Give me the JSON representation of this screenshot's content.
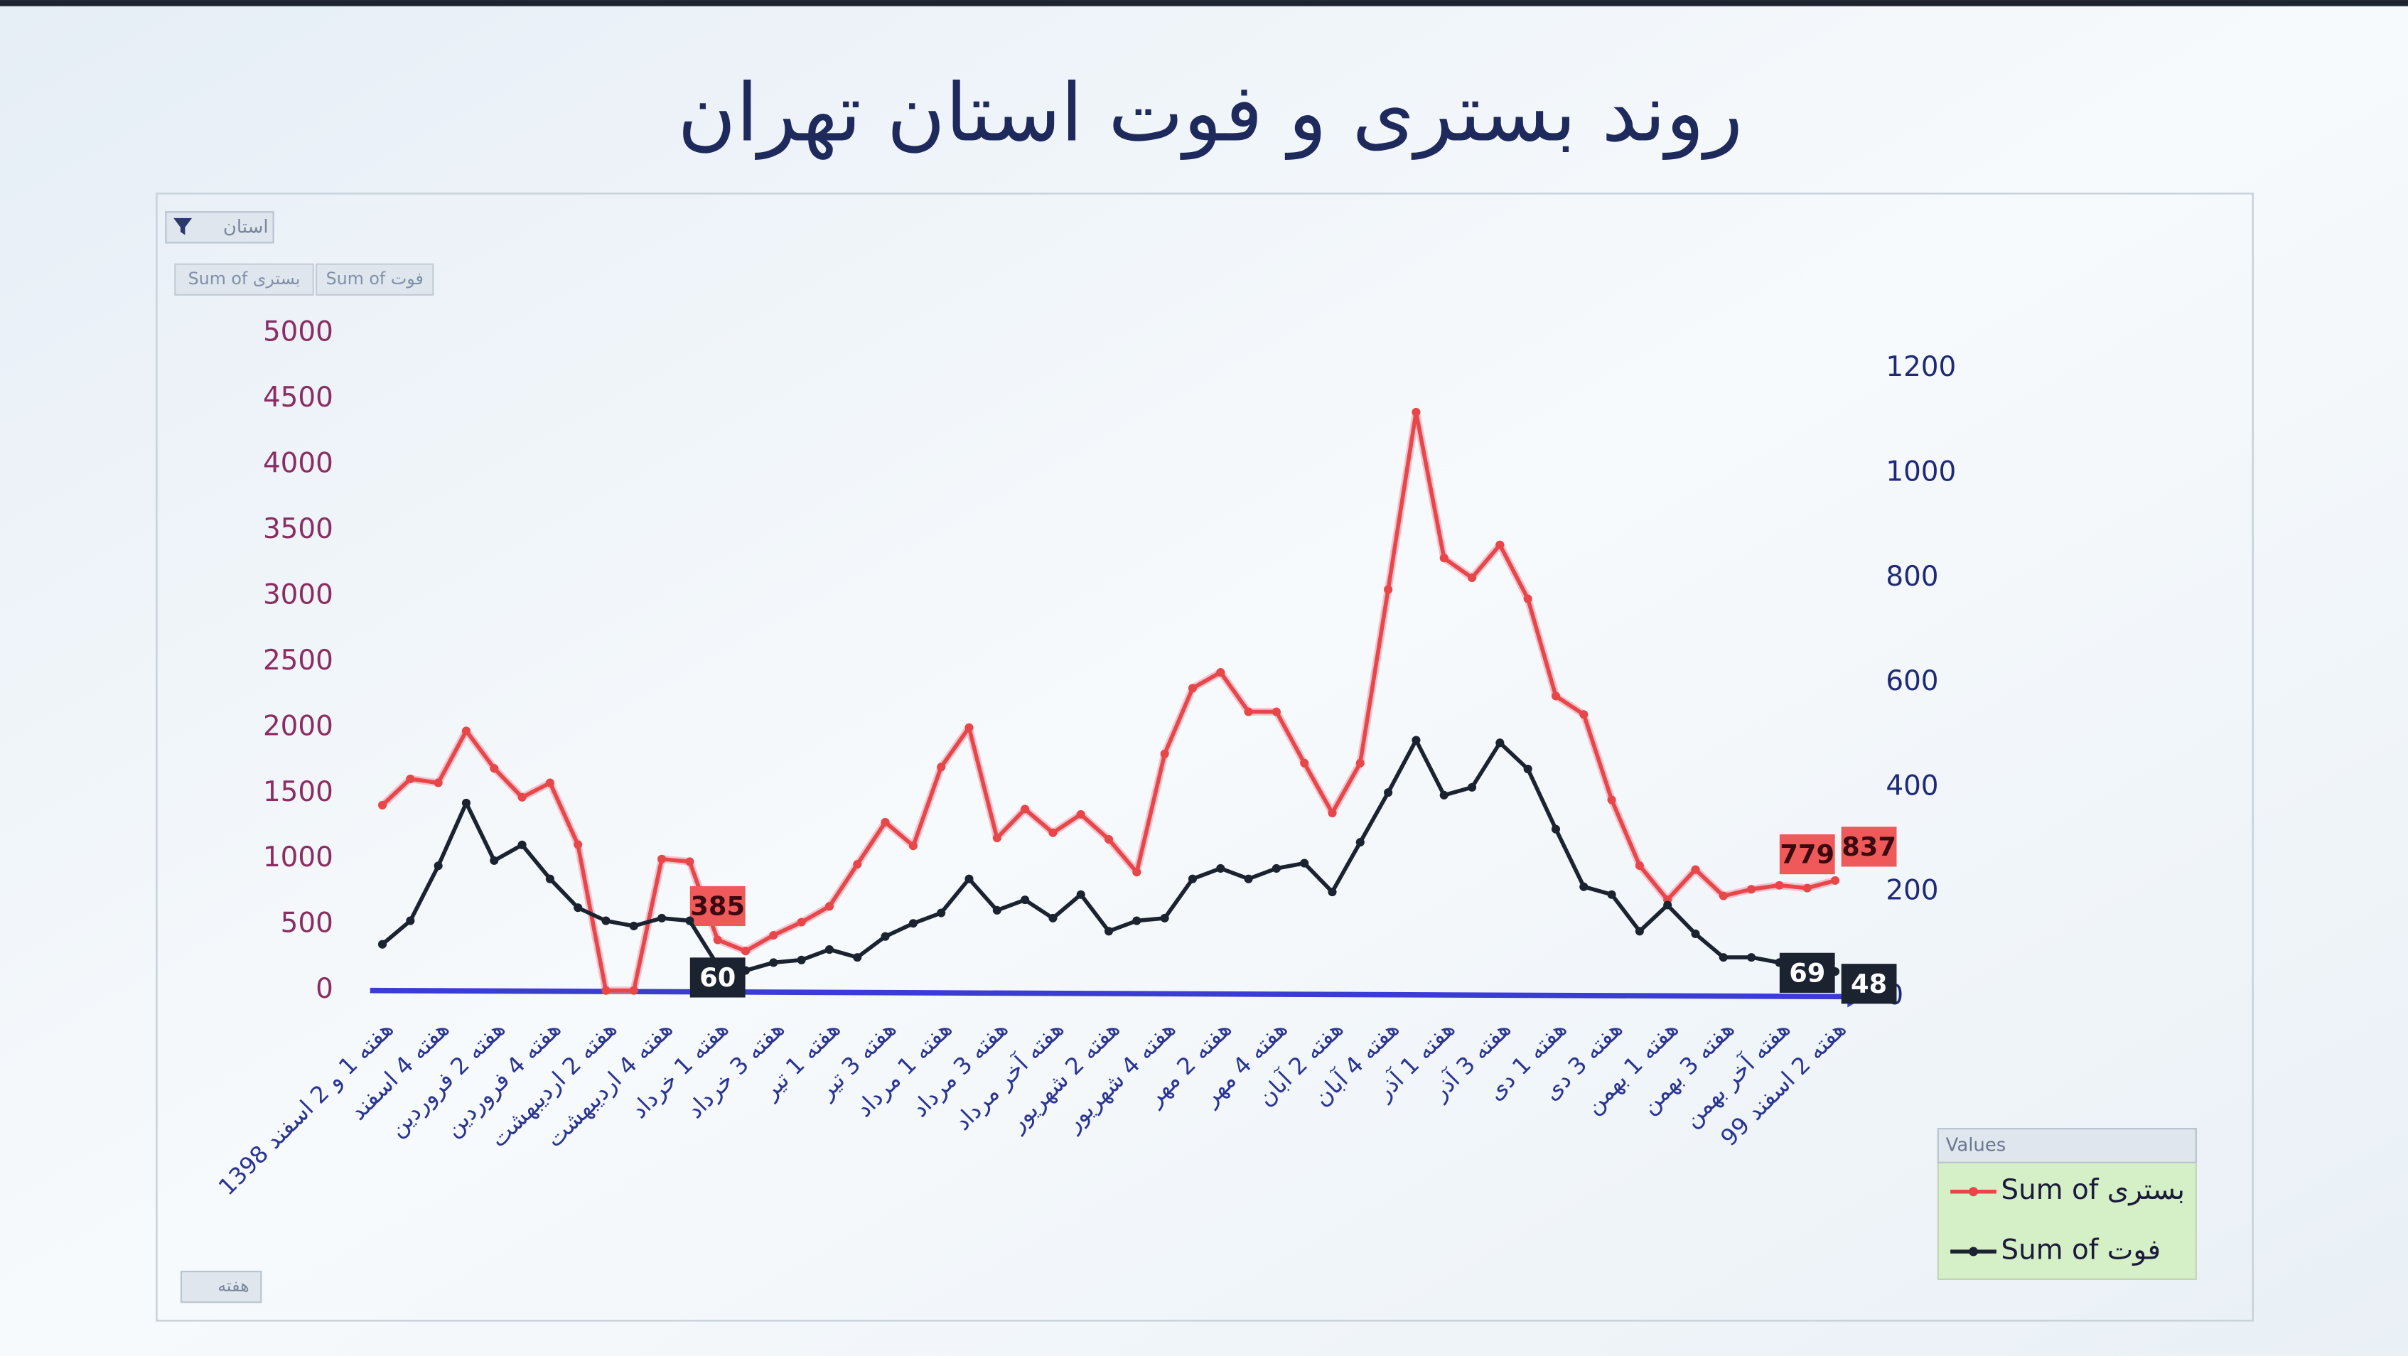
{
  "pivot_buttons": {
    "filter": "استان",
    "fields": [
      "Sum of بستری",
      "Sum of فوت"
    ],
    "axis_field": "هفته",
    "legend_title": "Values"
  },
  "chart_data": {
    "type": "line",
    "title": "روند بستری و فوت استان تهران",
    "categories": [
      "هفته 1 و 2 اسفند 1398",
      null,
      "هفته 4 اسفند",
      null,
      "هفته 2 فروردین",
      null,
      "هفته 4 فروردین",
      null,
      "هفته 2 اردیبهشت",
      null,
      "هفته 4 اردیبهشت",
      null,
      "هفته 1 خرداد",
      null,
      "هفته 3 خرداد",
      null,
      "هفته 1 تیر",
      null,
      "هفته 3 تیر",
      null,
      "هفته 1 مرداد",
      null,
      "هفته 3 مرداد",
      null,
      "هفته آخر مرداد",
      null,
      "هفته 2 شهریور",
      null,
      "هفته 4 شهریور",
      null,
      "هفته 2 مهر",
      null,
      "هفته 4 مهر",
      null,
      "هفته 2 آبان",
      null,
      "هفته 4 آبان",
      null,
      "هفته 1 آذر",
      null,
      "هفته 3 آذر",
      null,
      "هفته 1 دی",
      null,
      "هفته 3 دی",
      null,
      "هفته 1 بهمن",
      null,
      "هفته 3 بهمن",
      null,
      "هفته آخر بهمن",
      null,
      "هفته 2 اسفند 99"
    ],
    "series": [
      {
        "name": "Sum of بستری",
        "color": "#e8474a",
        "values": [
          1410,
          1610,
          1580,
          1975,
          1690,
          1470,
          1580,
          1110,
          0,
          0,
          1000,
          980,
          385,
          300,
          420,
          520,
          640,
          960,
          1280,
          1100,
          1700,
          2000,
          1160,
          1380,
          1200,
          1340,
          1150,
          900,
          1800,
          2300,
          2420,
          2120,
          2120,
          1730,
          1350,
          1730,
          3050,
          4400,
          3290,
          3140,
          3390,
          2980,
          2240,
          2100,
          1450,
          950,
          690,
          920,
          720,
          770,
          800,
          779,
          837
        ],
        "value_labels": [
          null,
          null,
          null,
          null,
          null,
          null,
          null,
          null,
          null,
          null,
          null,
          null,
          "385",
          null,
          null,
          null,
          null,
          null,
          null,
          null,
          null,
          null,
          null,
          null,
          null,
          null,
          null,
          null,
          null,
          null,
          null,
          null,
          null,
          null,
          null,
          null,
          null,
          null,
          null,
          null,
          null,
          null,
          null,
          null,
          null,
          null,
          null,
          null,
          null,
          null,
          null,
          "779",
          "837"
        ]
      },
      {
        "name": "Sum of فوت",
        "color": "#1b2230",
        "axis": "y2",
        "values": [
          100,
          145,
          250,
          370,
          260,
          290,
          225,
          170,
          145,
          135,
          150,
          145,
          60,
          50,
          65,
          70,
          90,
          75,
          115,
          140,
          160,
          225,
          165,
          185,
          150,
          195,
          125,
          145,
          150,
          225,
          245,
          225,
          245,
          255,
          200,
          295,
          390,
          490,
          385,
          400,
          485,
          435,
          320,
          210,
          195,
          125,
          175,
          120,
          75,
          75,
          65,
          69,
          48
        ],
        "value_labels": [
          null,
          null,
          null,
          null,
          null,
          null,
          null,
          null,
          null,
          null,
          null,
          null,
          "60",
          null,
          null,
          null,
          null,
          null,
          null,
          null,
          null,
          null,
          null,
          null,
          null,
          null,
          null,
          null,
          null,
          null,
          null,
          null,
          null,
          null,
          null,
          null,
          null,
          null,
          null,
          null,
          null,
          null,
          null,
          null,
          null,
          null,
          null,
          null,
          null,
          null,
          null,
          "69",
          "48"
        ]
      }
    ],
    "ylim": [
      0,
      5000
    ],
    "yticks": [
      0,
      500,
      1000,
      1500,
      2000,
      2500,
      3000,
      3500,
      4000,
      4500,
      5000
    ],
    "y2lim": [
      0,
      1270
    ],
    "y2ticks": [
      0,
      200,
      400,
      600,
      800,
      1000,
      1200
    ],
    "legend": "right"
  }
}
